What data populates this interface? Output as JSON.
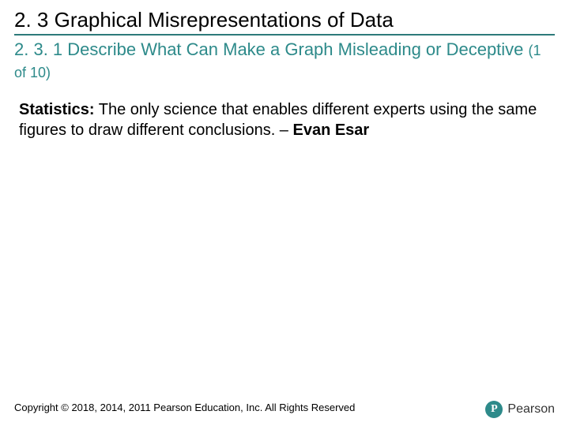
{
  "colors": {
    "teal": "#2d8a8a",
    "underline": "#2d7a7a",
    "text": "#000000",
    "background": "#ffffff",
    "logo_bg": "#2d8a8a",
    "logo_fg": "#ffffff",
    "logo_text": "#333333"
  },
  "typography": {
    "section_title_fontsize": 26,
    "sub_title_fontsize": 22,
    "pager_fontsize": 18,
    "body_fontsize": 20,
    "footer_fontsize": 13,
    "font_family": "Arial, Helvetica, sans-serif"
  },
  "header": {
    "section_title": "2. 3 Graphical Misrepresentations of Data",
    "sub_title_line": "2. 3. 1 Describe What Can Make a Graph Misleading or Deceptive",
    "pager": "(1 of 10)"
  },
  "body": {
    "lead_word": "Statistics:",
    "quote_text": " The only science that enables different experts using the same figures to draw different conclusions. – ",
    "author": "Evan Esar"
  },
  "footer": {
    "copyright": "Copyright © 2018, 2014, 2011 Pearson Education, Inc. All Rights Reserved"
  },
  "logo": {
    "mark_letter": "P",
    "brand": "Pearson"
  }
}
